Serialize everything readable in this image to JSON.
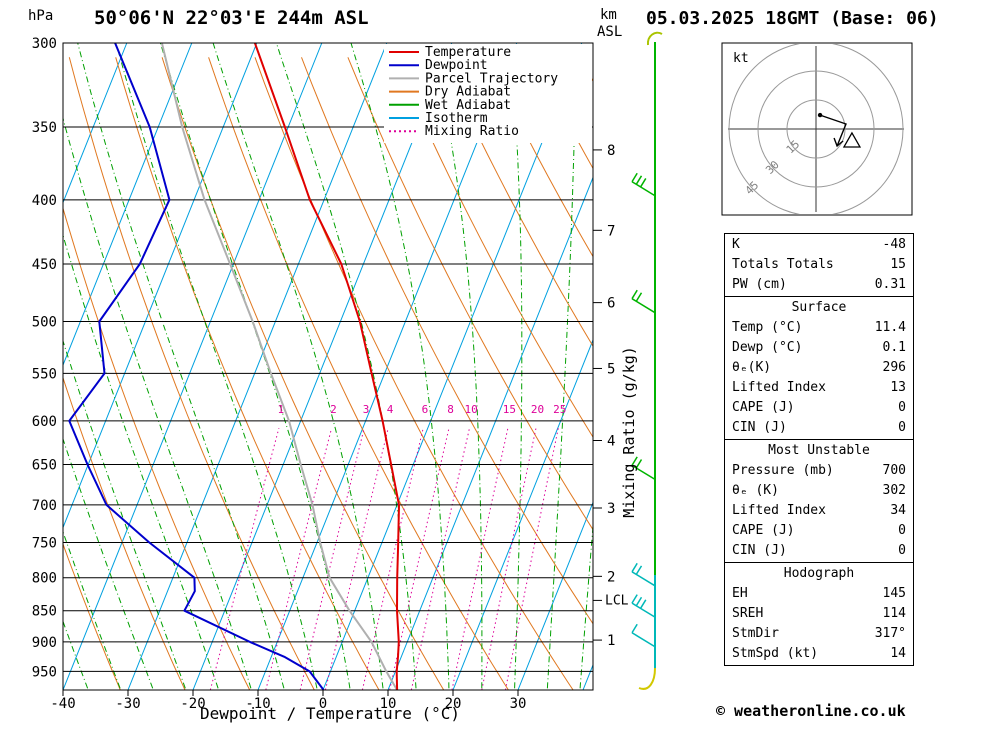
{
  "header": {
    "pressure_unit": "hPa",
    "title": "50°06'N 22°03'E 244m ASL",
    "date": "05.03.2025 18GMT (Base: 06)",
    "km_label": "km",
    "asl_label": "ASL"
  },
  "axes": {
    "pressure_ticks": [
      300,
      350,
      400,
      450,
      500,
      550,
      600,
      650,
      700,
      750,
      800,
      850,
      900,
      950
    ],
    "temp_ticks": [
      -40,
      -30,
      -20,
      -10,
      0,
      10,
      20,
      30
    ],
    "xlabel": "Dewpoint / Temperature (°C)",
    "mixing_ratio_label": "Mixing Ratio (g/kg)",
    "km_ticks": [
      {
        "km": 8,
        "p": 365
      },
      {
        "km": 7,
        "p": 423
      },
      {
        "km": 6,
        "p": 483
      },
      {
        "km": 5,
        "p": 545
      },
      {
        "km": 4,
        "p": 622
      },
      {
        "km": 3,
        "p": 704
      },
      {
        "km": 2,
        "p": 798
      },
      {
        "km": 1,
        "p": 897
      }
    ],
    "lcl": {
      "label": "LCL",
      "p": 834
    }
  },
  "legend": [
    {
      "label": "Temperature",
      "color": "#e00000",
      "dash": ""
    },
    {
      "label": "Dewpoint",
      "color": "#0000cc",
      "dash": ""
    },
    {
      "label": "Parcel Trajectory",
      "color": "#b0b0b0",
      "dash": ""
    },
    {
      "label": "Dry Adiabat",
      "color": "#e07820",
      "dash": ""
    },
    {
      "label": "Wet Adiabat",
      "color": "#00a000",
      "dash": ""
    },
    {
      "label": "Isotherm",
      "color": "#00a0e0",
      "dash": ""
    },
    {
      "label": "Mixing Ratio",
      "color": "#dd0099",
      "dash": "2 3"
    }
  ],
  "chart_data": {
    "type": "line",
    "title": "Skew-T log-P sounding 50°06'N 22°03'E 244m ASL 05.03.2025 18GMT",
    "x_axis": {
      "label": "Dewpoint / Temperature (°C)",
      "ticks": [
        -40,
        -30,
        -20,
        -10,
        0,
        10,
        20,
        30
      ]
    },
    "y_axis": {
      "label": "hPa",
      "scale": "log",
      "range": [
        300,
        983
      ],
      "ticks": [
        300,
        350,
        400,
        450,
        500,
        550,
        600,
        650,
        700,
        750,
        800,
        850,
        900,
        950
      ]
    },
    "grid": {
      "isotherm_min": -80,
      "isotherm_max": 40,
      "isotherm_step": 10,
      "dry_theta_min": -30,
      "dry_theta_max": 120,
      "dry_theta_step": 10,
      "wet_start_min": -35,
      "wet_start_max": 40,
      "wet_start_step": 5,
      "mixing_values": [
        1,
        2,
        3,
        4,
        6,
        8,
        10,
        15,
        20,
        25
      ]
    },
    "series": [
      {
        "name": "Temperature",
        "color": "#e00000",
        "units": {
          "x": "hPa",
          "y": "°C"
        },
        "points": [
          [
            983,
            11.4
          ],
          [
            950,
            10.2
          ],
          [
            925,
            9.5
          ],
          [
            900,
            8.7
          ],
          [
            850,
            6.5
          ],
          [
            800,
            4.5
          ],
          [
            750,
            2.5
          ],
          [
            700,
            0.3
          ],
          [
            650,
            -3.4
          ],
          [
            600,
            -7.4
          ],
          [
            550,
            -12.0
          ],
          [
            500,
            -17.0
          ],
          [
            450,
            -23.4
          ],
          [
            400,
            -32.2
          ],
          [
            350,
            -40.5
          ],
          [
            300,
            -50.3
          ]
        ]
      },
      {
        "name": "Dewpoint",
        "color": "#0000cc",
        "units": {
          "x": "hPa",
          "y": "°C"
        },
        "points": [
          [
            983,
            0.1
          ],
          [
            950,
            -3.2
          ],
          [
            925,
            -8.0
          ],
          [
            900,
            -14.2
          ],
          [
            850,
            -26.2
          ],
          [
            820,
            -25.8
          ],
          [
            800,
            -26.7
          ],
          [
            750,
            -35.8
          ],
          [
            700,
            -44.7
          ],
          [
            650,
            -50.1
          ],
          [
            600,
            -55.6
          ],
          [
            550,
            -53.1
          ],
          [
            500,
            -57.1
          ],
          [
            450,
            -54.4
          ],
          [
            400,
            -53.8
          ],
          [
            350,
            -61.3
          ],
          [
            300,
            -71.8
          ]
        ]
      },
      {
        "name": "Parcel Trajectory",
        "color": "#b0b0b0",
        "units": {
          "x": "hPa",
          "y": "°C"
        },
        "points": [
          [
            983,
            11.4
          ],
          [
            950,
            8.6
          ],
          [
            900,
            4.5
          ],
          [
            850,
            -0.8
          ],
          [
            800,
            -5.9
          ],
          [
            750,
            -9.5
          ],
          [
            700,
            -13.0
          ],
          [
            650,
            -17.3
          ],
          [
            600,
            -21.8
          ],
          [
            550,
            -27.5
          ],
          [
            500,
            -33.5
          ],
          [
            450,
            -40.5
          ],
          [
            400,
            -48.4
          ],
          [
            350,
            -56.3
          ],
          [
            300,
            -64.6
          ]
        ]
      }
    ]
  },
  "wind_column": {
    "staff_colors": {
      "top_hook": "#aac400",
      "upper": "#00b400",
      "lower": "#00b8b8",
      "bottom_hook": "#d2c800"
    },
    "barbs": [
      {
        "p": 397,
        "color": "#00b400",
        "feathers": 3
      },
      {
        "p": 492,
        "color": "#00b400",
        "feathers": 2
      },
      {
        "p": 668,
        "color": "#00b400",
        "feathers": 2
      },
      {
        "p": 812,
        "color": "#00b8b8",
        "feathers": 2
      },
      {
        "p": 860,
        "color": "#00b8b8",
        "feathers": 3
      },
      {
        "p": 908,
        "color": "#00b8b8",
        "feathers": 1
      }
    ]
  },
  "hodograph": {
    "unit_label": "kt",
    "rings": [
      15,
      30,
      45
    ],
    "trace_kt": [
      [
        2.1,
        -7.2
      ],
      [
        15.5,
        -2.6
      ],
      [
        10.9,
        8.8
      ]
    ],
    "marker_kt": [
      18.6,
      6.2
    ]
  },
  "table": {
    "sections": [
      {
        "title": "",
        "rows": [
          [
            "K",
            "-48"
          ],
          [
            "Totals Totals",
            "15"
          ],
          [
            "PW (cm)",
            "0.31"
          ]
        ]
      },
      {
        "title": "Surface",
        "rows": [
          [
            "Temp (°C)",
            "11.4"
          ],
          [
            "Dewp (°C)",
            "0.1"
          ],
          [
            "θₑ(K)",
            "296"
          ],
          [
            "Lifted Index",
            "13"
          ],
          [
            "CAPE (J)",
            "0"
          ],
          [
            "CIN (J)",
            "0"
          ]
        ]
      },
      {
        "title": "Most Unstable",
        "rows": [
          [
            "Pressure (mb)",
            "700"
          ],
          [
            "θₑ (K)",
            "302"
          ],
          [
            "Lifted Index",
            "34"
          ],
          [
            "CAPE (J)",
            "0"
          ],
          [
            "CIN (J)",
            "0"
          ]
        ]
      },
      {
        "title": "Hodograph",
        "rows": [
          [
            "EH",
            "145"
          ],
          [
            "SREH",
            "114"
          ],
          [
            "StmDir",
            "317°"
          ],
          [
            "StmSpd (kt)",
            "14"
          ]
        ]
      }
    ]
  },
  "footer": {
    "copyright": "© weatheronline.co.uk"
  }
}
